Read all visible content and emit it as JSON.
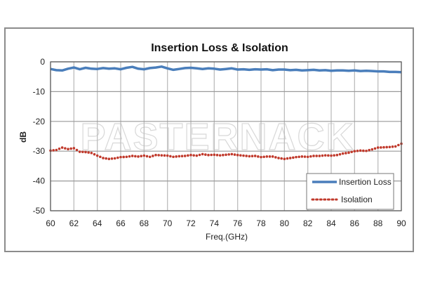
{
  "chart_data": {
    "type": "line",
    "title": "Insertion Loss & Isolation",
    "xlabel": "Freq.(GHz)",
    "ylabel": "dB",
    "xlim": [
      60,
      90
    ],
    "ylim": [
      -50,
      0
    ],
    "xticks": [
      60,
      62,
      64,
      66,
      68,
      70,
      72,
      74,
      76,
      78,
      80,
      82,
      84,
      86,
      88,
      90
    ],
    "yticks": [
      0,
      -10,
      -20,
      -30,
      -40,
      -50
    ],
    "xtick_labels": [
      "60",
      "62",
      "64",
      "66",
      "68",
      "70",
      "72",
      "74",
      "76",
      "78",
      "80",
      "82",
      "84",
      "86",
      "88",
      "90"
    ],
    "ytick_labels": [
      "0",
      "-10",
      "-20",
      "-30",
      "-40",
      "-50"
    ],
    "grid": true,
    "legend_position": "bottom-right",
    "watermark": "PASTERNACK",
    "series": [
      {
        "name": "Insertion Loss",
        "style": "solid",
        "color": "#4a7ebb",
        "x": [
          60,
          60.5,
          61,
          61.5,
          62,
          62.5,
          63,
          63.5,
          64,
          64.5,
          65,
          65.5,
          66,
          66.5,
          67,
          67.5,
          68,
          68.5,
          69,
          69.5,
          70,
          70.5,
          71,
          71.5,
          72,
          72.5,
          73,
          73.5,
          74,
          74.5,
          75,
          75.5,
          76,
          76.5,
          77,
          77.5,
          78,
          78.5,
          79,
          79.5,
          80,
          80.5,
          81,
          81.5,
          82,
          82.5,
          83,
          83.5,
          84,
          84.5,
          85,
          85.5,
          86,
          86.5,
          87,
          87.5,
          88,
          88.5,
          89,
          89.5,
          90
        ],
        "y": [
          -2.4,
          -2.8,
          -2.9,
          -2.3,
          -1.9,
          -2.5,
          -2.0,
          -2.3,
          -2.4,
          -2.1,
          -2.3,
          -2.2,
          -2.5,
          -2.0,
          -1.7,
          -2.3,
          -2.5,
          -2.1,
          -1.9,
          -1.6,
          -2.2,
          -2.7,
          -2.4,
          -2.1,
          -2.0,
          -2.2,
          -2.4,
          -2.2,
          -2.3,
          -2.6,
          -2.4,
          -2.2,
          -2.6,
          -2.5,
          -2.7,
          -2.5,
          -2.6,
          -2.5,
          -2.8,
          -2.6,
          -2.6,
          -2.8,
          -2.7,
          -2.9,
          -2.8,
          -2.7,
          -2.9,
          -2.8,
          -3.0,
          -2.9,
          -2.9,
          -3.0,
          -2.9,
          -3.1,
          -3.0,
          -3.1,
          -3.2,
          -3.2,
          -3.4,
          -3.4,
          -3.5
        ]
      },
      {
        "name": "Isolation",
        "style": "dotted",
        "color": "#c0392b",
        "x": [
          60,
          60.5,
          61,
          61.5,
          62,
          62.5,
          63,
          63.5,
          64,
          64.5,
          65,
          65.5,
          66,
          66.5,
          67,
          67.5,
          68,
          68.5,
          69,
          69.5,
          70,
          70.5,
          71,
          71.5,
          72,
          72.5,
          73,
          73.5,
          74,
          74.5,
          75,
          75.5,
          76,
          76.5,
          77,
          77.5,
          78,
          78.5,
          79,
          79.5,
          80,
          80.5,
          81,
          81.5,
          82,
          82.5,
          83,
          83.5,
          84,
          84.5,
          85,
          85.5,
          86,
          86.5,
          87,
          87.5,
          88,
          88.5,
          89,
          89.5,
          90
        ],
        "y": [
          -29.8,
          -29.6,
          -28.8,
          -29.3,
          -29.0,
          -30.2,
          -30.3,
          -30.6,
          -31.5,
          -32.3,
          -32.6,
          -32.4,
          -32.0,
          -31.9,
          -31.6,
          -31.8,
          -31.5,
          -31.9,
          -31.3,
          -31.4,
          -31.5,
          -31.9,
          -31.7,
          -31.6,
          -31.3,
          -31.5,
          -31.0,
          -31.3,
          -31.2,
          -31.4,
          -31.2,
          -31.0,
          -31.3,
          -31.5,
          -31.7,
          -31.6,
          -32.0,
          -31.8,
          -31.8,
          -32.3,
          -32.6,
          -32.3,
          -32.0,
          -31.8,
          -31.9,
          -31.6,
          -31.6,
          -31.4,
          -31.5,
          -31.3,
          -30.8,
          -30.5,
          -30.0,
          -29.8,
          -29.9,
          -29.4,
          -28.8,
          -28.7,
          -28.6,
          -28.4,
          -27.5
        ]
      }
    ]
  }
}
